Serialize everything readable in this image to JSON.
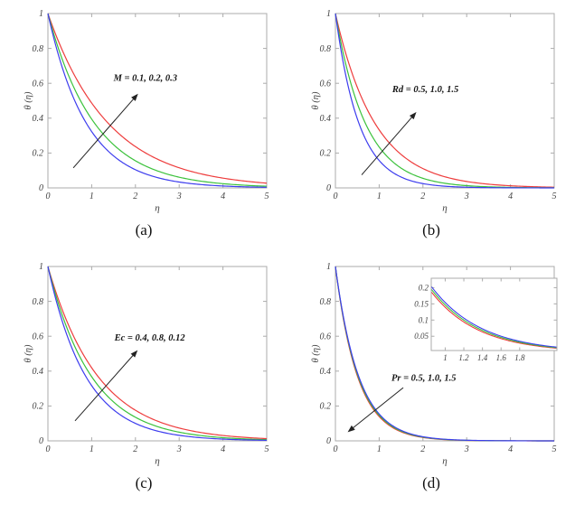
{
  "figure": {
    "background": "#ffffff",
    "frame_color": "#ababab",
    "tick_label_color": "#424242",
    "annotation_color": "#161616",
    "palette": {
      "red": "#ee3d3d",
      "green": "#3cc23c",
      "blue": "#3d3dee"
    }
  },
  "chart_data": [
    {
      "id": "a",
      "caption": "(a)",
      "type": "line",
      "xlabel": "η",
      "ylabel": "θ (η)",
      "xlim": [
        0,
        5
      ],
      "ylim": [
        0,
        1
      ],
      "xticks": [
        0,
        1,
        2,
        3,
        4,
        5
      ],
      "yticks": [
        0,
        0.2,
        0.4,
        0.6,
        0.8,
        1
      ],
      "grid": false,
      "annotation": {
        "text": "M = 0.1, 0.2, 0.3",
        "text_pos": [
          1.5,
          0.615
        ],
        "arrow_from": [
          0.58,
          0.115
        ],
        "arrow_to": [
          2.06,
          0.54
        ]
      },
      "x_samples": [
        0,
        0.5,
        1,
        1.5,
        2,
        2.5,
        3,
        3.5,
        4,
        4.5,
        5
      ],
      "series": [
        {
          "name": "M = 0.1",
          "color": "blue",
          "decay": 1.13,
          "values": [
            1,
            0.568,
            0.323,
            0.184,
            0.104,
            0.059,
            0.034,
            0.019,
            0.011,
            0.006,
            0.004
          ]
        },
        {
          "name": "M = 0.2",
          "color": "green",
          "decay": 0.93,
          "values": [
            1,
            0.628,
            0.395,
            0.248,
            0.156,
            0.098,
            0.061,
            0.039,
            0.024,
            0.015,
            0.01
          ]
        },
        {
          "name": "M = 0.3",
          "color": "red",
          "decay": 0.72,
          "values": [
            1,
            0.698,
            0.487,
            0.34,
            0.237,
            0.165,
            0.115,
            0.08,
            0.056,
            0.039,
            0.027
          ]
        }
      ]
    },
    {
      "id": "b",
      "caption": "(b)",
      "type": "line",
      "xlabel": "η",
      "ylabel": "θ (η)",
      "xlim": [
        0,
        5
      ],
      "ylim": [
        0,
        1
      ],
      "xticks": [
        0,
        1,
        2,
        3,
        4,
        5
      ],
      "yticks": [
        0,
        0.2,
        0.4,
        0.6,
        0.8,
        1
      ],
      "grid": false,
      "annotation": {
        "text": "Rd = 0.5, 1.0, 1.5",
        "text_pos": [
          1.3,
          0.55
        ],
        "arrow_from": [
          0.6,
          0.075
        ],
        "arrow_to": [
          1.85,
          0.435
        ]
      },
      "x_samples": [
        0,
        0.5,
        1,
        1.5,
        2,
        2.5,
        3,
        3.5,
        4,
        4.5,
        5
      ],
      "series": [
        {
          "name": "Rd = 0.5",
          "color": "blue",
          "decay": 1.85,
          "values": [
            1,
            0.397,
            0.157,
            0.062,
            0.025,
            0.01,
            0.004,
            0.002,
            0.001,
            0.0,
            0.0
          ]
        },
        {
          "name": "Rd = 1.0",
          "color": "green",
          "decay": 1.45,
          "values": [
            1,
            0.484,
            0.235,
            0.114,
            0.055,
            0.027,
            0.013,
            0.006,
            0.003,
            0.001,
            0.001
          ]
        },
        {
          "name": "Rd = 1.5",
          "color": "red",
          "decay": 1.1,
          "values": [
            1,
            0.577,
            0.333,
            0.192,
            0.111,
            0.064,
            0.037,
            0.021,
            0.012,
            0.007,
            0.004
          ]
        }
      ]
    },
    {
      "id": "c",
      "caption": "(c)",
      "type": "line",
      "xlabel": "η",
      "ylabel": "θ (η)",
      "xlim": [
        0,
        5
      ],
      "ylim": [
        0,
        1
      ],
      "xticks": [
        0,
        1,
        2,
        3,
        4,
        5
      ],
      "yticks": [
        0,
        0.2,
        0.4,
        0.6,
        0.8,
        1
      ],
      "grid": false,
      "annotation": {
        "text": "Ec = 0.4, 0.8, 0.12",
        "text_pos": [
          1.52,
          0.575
        ],
        "arrow_from": [
          0.62,
          0.115
        ],
        "arrow_to": [
          2.05,
          0.52
        ]
      },
      "x_samples": [
        0,
        0.5,
        1,
        1.5,
        2,
        2.5,
        3,
        3.5,
        4,
        4.5,
        5
      ],
      "series": [
        {
          "name": "Ec = 0.4",
          "color": "blue",
          "decay": 1.15,
          "values": [
            1,
            0.563,
            0.317,
            0.178,
            0.1,
            0.056,
            0.032,
            0.018,
            0.01,
            0.006,
            0.003
          ]
        },
        {
          "name": "Ec = 0.8",
          "color": "green",
          "decay": 1.0,
          "values": [
            1,
            0.607,
            0.368,
            0.223,
            0.135,
            0.082,
            0.05,
            0.03,
            0.018,
            0.011,
            0.007
          ]
        },
        {
          "name": "Ec = 0.12",
          "color": "red",
          "decay": 0.87,
          "values": [
            1,
            0.647,
            0.419,
            0.271,
            0.176,
            0.114,
            0.074,
            0.048,
            0.031,
            0.02,
            0.013
          ]
        }
      ]
    },
    {
      "id": "d",
      "caption": "(d)",
      "type": "line",
      "xlabel": "η",
      "ylabel": "θ (η)",
      "xlim": [
        0,
        5
      ],
      "ylim": [
        0,
        1
      ],
      "xticks": [
        0,
        1,
        2,
        3,
        4,
        5
      ],
      "yticks": [
        0,
        0.2,
        0.4,
        0.6,
        0.8,
        1
      ],
      "grid": false,
      "annotation": {
        "text": "Pr = 0.5, 1.0, 1.5",
        "text_pos": [
          1.28,
          0.345
        ],
        "arrow_from": [
          1.55,
          0.305
        ],
        "arrow_to": [
          0.28,
          0.05
        ]
      },
      "x_samples": [
        0,
        0.5,
        1,
        1.5,
        2,
        2.5,
        3,
        3.5,
        4,
        4.5,
        5
      ],
      "series": [
        {
          "name": "Pr = 0.5",
          "color": "blue",
          "decay": 1.87,
          "values": [
            1,
            0.393,
            0.154,
            0.061,
            0.024,
            0.009,
            0.004,
            0.001,
            0.001,
            0.0,
            0.0
          ]
        },
        {
          "name": "Pr = 1.0",
          "color": "green",
          "decay": 1.92,
          "values": [
            1,
            0.383,
            0.147,
            0.056,
            0.021,
            0.008,
            0.003,
            0.001,
            0.0,
            0.0,
            0.0
          ]
        },
        {
          "name": "Pr = 1.5",
          "color": "red",
          "decay": 1.97,
          "values": [
            1,
            0.373,
            0.139,
            0.052,
            0.019,
            0.007,
            0.003,
            0.001,
            0.0,
            0.0,
            0.0
          ]
        }
      ],
      "inset": {
        "xlim": [
          0.85,
          2.2
        ],
        "ylim": [
          0.006,
          0.229
        ],
        "xticks": [
          1,
          1.2,
          1.4,
          1.6,
          1.8
        ],
        "yticks": [
          0.05,
          0.1,
          0.15,
          0.2
        ]
      }
    }
  ]
}
